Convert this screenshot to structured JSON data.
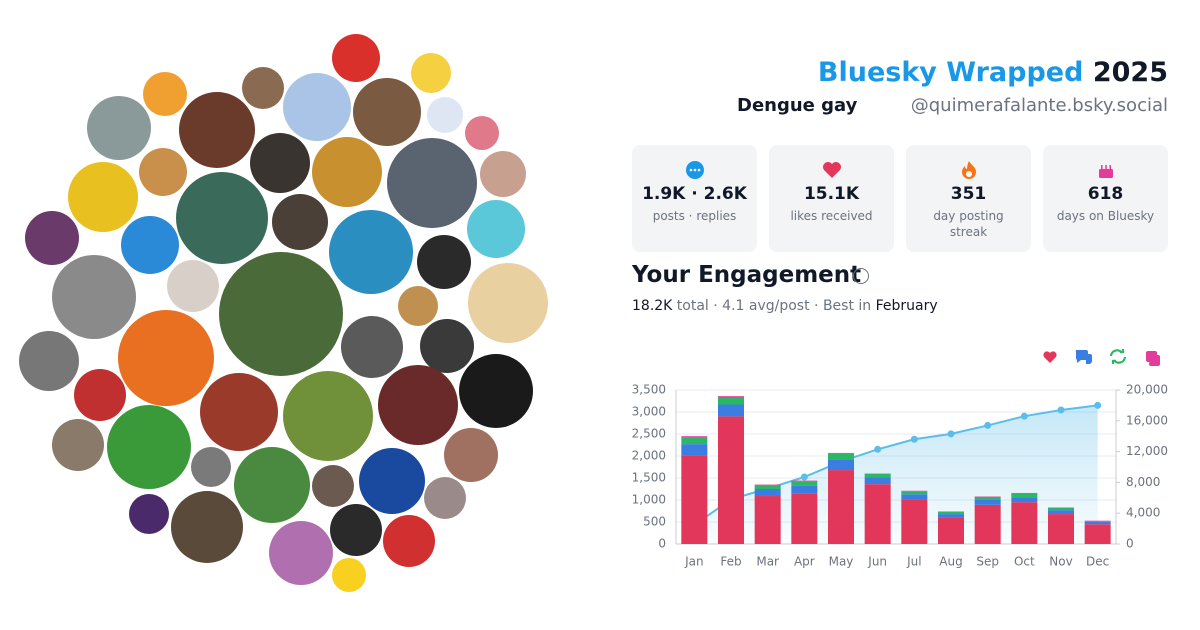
{
  "header": {
    "title": "Bluesky Wrapped",
    "year": "2025",
    "display_name": "Dengue gay",
    "handle": "@quimerafalante.bsky.social"
  },
  "stats": [
    {
      "value": "1.9K · 2.6K",
      "label": "posts · replies"
    },
    {
      "value": "15.1K",
      "label": "likes received"
    },
    {
      "value": "351",
      "label": "day posting streak"
    },
    {
      "value": "618",
      "label": "days on Bluesky"
    }
  ],
  "engagement": {
    "title": "Your Engagement",
    "total": "18.2K",
    "middle": " total · 4.1 avg/post · Best in ",
    "best": "February"
  },
  "chart_data": {
    "type": "bar",
    "stacked": true,
    "grid": true,
    "categories": [
      "Jan",
      "Feb",
      "Mar",
      "Apr",
      "May",
      "Jun",
      "Jul",
      "Aug",
      "Sep",
      "Oct",
      "Nov",
      "Dec"
    ],
    "series": [
      {
        "color": "#e2365a",
        "values": [
          2020,
          2900,
          1090,
          1140,
          1680,
          1360,
          1020,
          610,
          890,
          950,
          680,
          450
        ]
      },
      {
        "color": "#3b7de0",
        "values": [
          250,
          270,
          160,
          180,
          230,
          160,
          110,
          70,
          110,
          110,
          90,
          50
        ]
      },
      {
        "color": "#2bb865",
        "values": [
          160,
          160,
          90,
          110,
          140,
          70,
          70,
          50,
          70,
          90,
          50,
          20
        ]
      },
      {
        "color": "#e23c9c",
        "values": [
          20,
          30,
          10,
          10,
          20,
          10,
          10,
          10,
          10,
          10,
          10,
          10
        ]
      },
      {
        "type": "line",
        "axis": "y2",
        "color": "#5bbde8",
        "values": [
          2460,
          5800,
          7200,
          8700,
          10700,
          12300,
          13600,
          14300,
          15400,
          16600,
          17400,
          18000
        ]
      }
    ],
    "ylim": [
      0,
      3500
    ],
    "yticks": [
      0,
      500,
      {
        "value": 1000,
        "label": "1,000"
      },
      {
        "value": 1500,
        "label": "1,500"
      },
      {
        "value": 2000,
        "label": "2,000"
      },
      {
        "value": 2500,
        "label": "2,500"
      },
      {
        "value": 3000,
        "label": "3,000"
      },
      {
        "value": 3500,
        "label": "3,500"
      }
    ],
    "y2lim": [
      0,
      20000
    ],
    "y2ticks": [
      0,
      {
        "value": 4000,
        "label": "4,000"
      },
      {
        "value": 8000,
        "label": "8,000"
      },
      {
        "value": 12000,
        "label": "12,000"
      },
      {
        "value": 16000,
        "label": "16,000"
      },
      {
        "value": 20000,
        "label": "20,000"
      }
    ]
  }
}
